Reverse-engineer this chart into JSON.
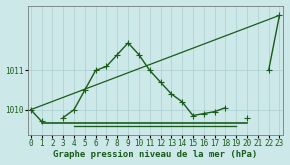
{
  "title": "Graphe pression niveau de la mer (hPa)",
  "background_color": "#cce8e8",
  "grid_color": "#aacfcf",
  "line_color": "#1a5c1a",
  "series_main": {
    "x": [
      0,
      1,
      2,
      3,
      4,
      5,
      6,
      7,
      8,
      9,
      10,
      11,
      12,
      13,
      14,
      15,
      16,
      17,
      18,
      19,
      20,
      21,
      22,
      23
    ],
    "y": [
      1010.0,
      1009.7,
      null,
      1009.8,
      1010.0,
      1010.5,
      1011.0,
      1011.1,
      1011.4,
      1011.7,
      1011.4,
      1011.0,
      1010.7,
      1010.4,
      1010.2,
      1009.85,
      1009.9,
      1009.95,
      1010.05,
      null,
      1009.8,
      null,
      1011.0,
      1012.4
    ]
  },
  "series_diag": {
    "x": [
      0,
      23
    ],
    "y": [
      1010.0,
      1012.4
    ]
  },
  "series_flat1": {
    "x": [
      1,
      20
    ],
    "y": [
      1009.65,
      1009.65
    ]
  },
  "series_flat2": {
    "x": [
      4,
      19
    ],
    "y": [
      1009.58,
      1009.58
    ]
  },
  "yticks": [
    1010,
    1011
  ],
  "xticks": [
    0,
    1,
    2,
    3,
    4,
    5,
    6,
    7,
    8,
    9,
    10,
    11,
    12,
    13,
    14,
    15,
    16,
    17,
    18,
    19,
    20,
    21,
    22,
    23
  ],
  "xlim": [
    -0.3,
    23.3
  ],
  "ylim": [
    1009.35,
    1012.65
  ],
  "tick_fontsize": 5.5,
  "label_fontsize": 6.5,
  "marker": "+",
  "markersize": 4,
  "linewidth": 1.0,
  "linewidth_diag": 0.9,
  "linewidth_flat": 1.2
}
